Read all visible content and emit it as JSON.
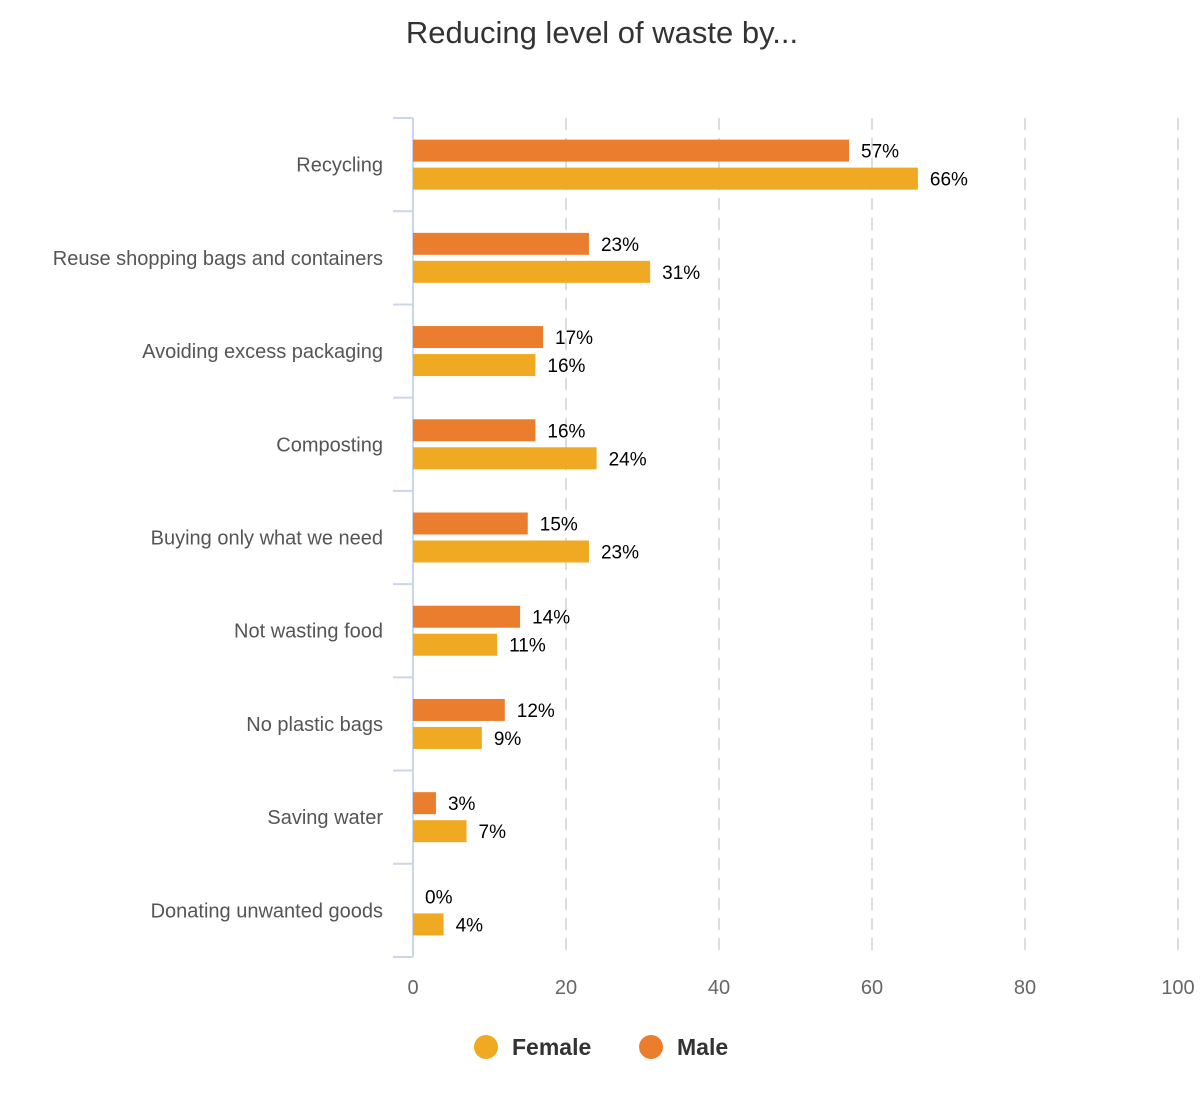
{
  "chart_data": {
    "type": "bar",
    "orientation": "horizontal",
    "title": "Reducing level of waste by...",
    "xlabel": "",
    "ylabel": "",
    "categories": [
      "Recycling",
      "Reuse shopping bags and containers",
      "Avoiding excess packaging",
      "Composting",
      "Buying only what we need",
      "Not wasting food",
      "No plastic bags",
      "Saving water",
      "Donating unwanted goods"
    ],
    "series": [
      {
        "name": "Male",
        "color": "#EA7E2E",
        "values": [
          57,
          23,
          17,
          16,
          15,
          14,
          12,
          3,
          0
        ]
      },
      {
        "name": "Female",
        "color": "#F0A923",
        "values": [
          66,
          31,
          16,
          24,
          23,
          11,
          9,
          7,
          4
        ]
      }
    ],
    "value_suffix": "%",
    "xlim": [
      0,
      100
    ],
    "xticks": [
      0,
      20,
      40,
      60,
      80,
      100
    ],
    "grid": "vertical dashed",
    "legend": {
      "position": "bottom-center",
      "order": [
        "Female",
        "Male"
      ]
    }
  }
}
